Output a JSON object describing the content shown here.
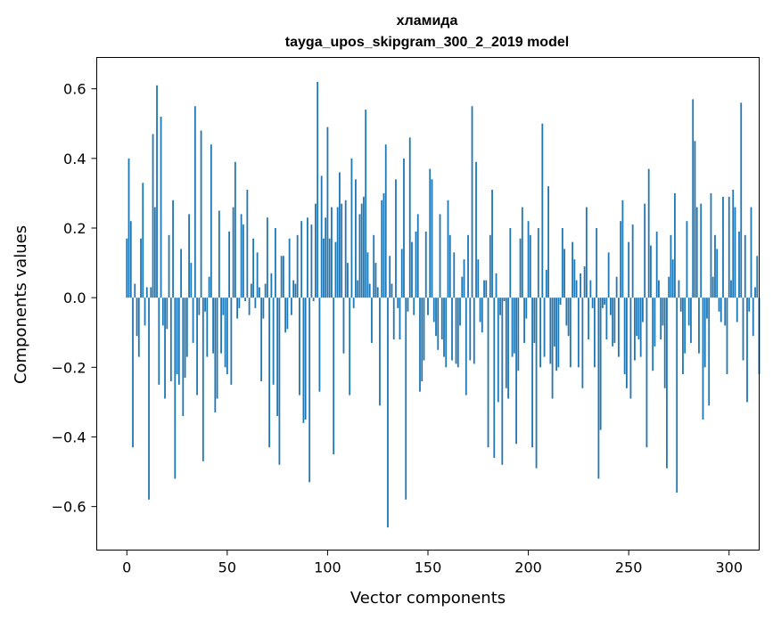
{
  "chart_data": {
    "type": "bar",
    "title_line1": "хламида",
    "title_line2": "tayga_upos_skipgram_300_2_2019 model",
    "xlabel": "Vector components",
    "ylabel": "Components values",
    "xlim": [
      -15,
      315
    ],
    "ylim": [
      -0.725,
      0.69
    ],
    "xticks": [
      0,
      50,
      100,
      150,
      200,
      250,
      300
    ],
    "xtick_labels": [
      "0",
      "50",
      "100",
      "150",
      "200",
      "250",
      "300"
    ],
    "yticks": [
      -0.6,
      -0.4,
      -0.2,
      0.0,
      0.2,
      0.4,
      0.6
    ],
    "ytick_labels": [
      "−0.6",
      "−0.4",
      "−0.2",
      "0.0",
      "0.2",
      "0.4",
      "0.6"
    ],
    "bar_color": "#1f77b4",
    "values": [
      0.17,
      0.4,
      0.22,
      -0.43,
      0.04,
      -0.11,
      -0.17,
      0.17,
      0.33,
      -0.08,
      0.03,
      -0.58,
      0.03,
      0.47,
      0.26,
      0.61,
      -0.25,
      0.52,
      -0.08,
      -0.29,
      -0.09,
      0.18,
      -0.24,
      0.28,
      -0.52,
      -0.22,
      -0.25,
      0.14,
      -0.34,
      -0.23,
      -0.17,
      0.24,
      0.1,
      -0.13,
      0.55,
      -0.28,
      -0.05,
      0.48,
      -0.47,
      -0.04,
      -0.17,
      0.06,
      0.44,
      -0.16,
      -0.33,
      -0.29,
      0.25,
      -0.16,
      -0.05,
      -0.2,
      -0.22,
      0.19,
      -0.25,
      0.26,
      0.39,
      -0.06,
      -0.03,
      0.24,
      0.21,
      -0.01,
      0.31,
      -0.05,
      0.04,
      0.17,
      -0.03,
      0.13,
      0.03,
      -0.24,
      -0.06,
      0.04,
      0.23,
      -0.43,
      0.07,
      -0.25,
      0.2,
      -0.34,
      -0.48,
      0.12,
      0.12,
      -0.1,
      -0.09,
      0.17,
      -0.05,
      0.05,
      0.04,
      0.18,
      -0.28,
      0.22,
      -0.36,
      -0.35,
      0.23,
      -0.53,
      0.21,
      -0.01,
      0.27,
      0.62,
      -0.27,
      0.35,
      0.17,
      0.23,
      0.49,
      0.17,
      0.26,
      -0.45,
      0.16,
      0.26,
      0.36,
      0.27,
      -0.16,
      0.28,
      0.1,
      -0.28,
      0.4,
      -0.03,
      0.34,
      0.05,
      0.24,
      0.27,
      0.29,
      0.54,
      0.13,
      0.04,
      -0.13,
      0.18,
      0.1,
      0.03,
      -0.31,
      0.28,
      0.3,
      0.44,
      -0.66,
      0.12,
      0.04,
      -0.12,
      0.34,
      -0.03,
      -0.12,
      0.14,
      0.4,
      -0.58,
      -0.04,
      0.46,
      0.16,
      -0.05,
      0.19,
      0.24,
      -0.27,
      -0.24,
      -0.18,
      0.19,
      -0.05,
      0.37,
      0.34,
      -0.07,
      -0.11,
      -0.15,
      0.24,
      -0.12,
      -0.17,
      -0.2,
      0.28,
      0.18,
      -0.18,
      0.13,
      -0.19,
      -0.2,
      -0.08,
      0.06,
      0.11,
      -0.28,
      0.18,
      -0.18,
      0.55,
      -0.19,
      0.39,
      0.11,
      -0.07,
      -0.1,
      0.05,
      0.05,
      -0.43,
      0.18,
      0.31,
      -0.46,
      0.07,
      -0.3,
      -0.05,
      -0.48,
      -0.01,
      -0.26,
      -0.29,
      0.2,
      -0.17,
      -0.16,
      -0.42,
      -0.21,
      0.17,
      0.26,
      -0.13,
      -0.06,
      0.22,
      0.18,
      -0.43,
      -0.13,
      -0.49,
      0.2,
      -0.2,
      0.5,
      -0.17,
      0.08,
      0.32,
      -0.19,
      -0.29,
      -0.14,
      -0.21,
      -0.2,
      -0.02,
      0.2,
      0.14,
      -0.08,
      -0.11,
      -0.2,
      0.16,
      0.11,
      0.05,
      -0.2,
      0.07,
      -0.26,
      0.09,
      0.26,
      -0.12,
      0.05,
      -0.03,
      -0.2,
      0.2,
      -0.52,
      -0.38,
      -0.03,
      -0.02,
      -0.12,
      0.13,
      -0.05,
      -0.14,
      -0.13,
      0.06,
      -0.17,
      0.22,
      0.28,
      -0.22,
      -0.26,
      0.16,
      -0.29,
      0.21,
      -0.18,
      -0.11,
      -0.12,
      -0.17,
      -0.07,
      0.27,
      -0.43,
      0.37,
      0.15,
      -0.21,
      -0.14,
      0.19,
      0.05,
      -0.12,
      -0.08,
      -0.26,
      -0.49,
      0.06,
      0.18,
      0.11,
      0.3,
      -0.56,
      0.05,
      -0.04,
      -0.22,
      -0.16,
      0.22,
      -0.08,
      -0.13,
      0.57,
      0.45,
      0.26,
      -0.16,
      0.27,
      -0.35,
      -0.2,
      -0.06,
      -0.31,
      0.3,
      0.06,
      0.18,
      0.14,
      -0.04,
      -0.07,
      0.29,
      -0.08,
      -0.22,
      0.29,
      0.05,
      0.31,
      0.26,
      -0.07,
      0.19,
      0.56,
      -0.18,
      0.18,
      -0.3,
      -0.04,
      0.26,
      -0.11,
      0.03,
      0.12,
      -0.22
    ]
  }
}
